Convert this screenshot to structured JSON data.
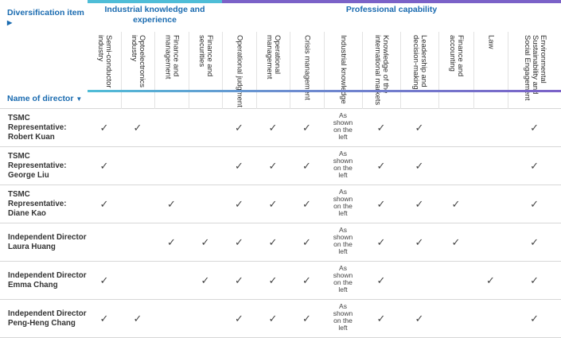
{
  "header": {
    "diversification_item": "Diversification item",
    "name_of_director": "Name of director",
    "group_industrial": "Industrial knowledge and experience",
    "group_professional": "Professional capability"
  },
  "columns": [
    "Semi-conductor industry",
    "Optoelectronics industry",
    "Finance and management",
    "Finance and securities",
    "Operational judgment",
    "Operational management",
    "Crisis management",
    "Industrial knowledge",
    "Knowledge of the international markets",
    "Leadership and decision-making",
    "Finance and accounting",
    "Law",
    "Environmental Sustainability and Social Engagement"
  ],
  "as_shown": "As shown on the left",
  "check_symbol": "✓",
  "directors": [
    {
      "name_lines": [
        "TSMC",
        "Representative:",
        "Robert Kuan"
      ],
      "cells": [
        "✓",
        "✓",
        "",
        "",
        "✓",
        "✓",
        "✓",
        "A",
        "✓",
        "✓",
        "",
        "",
        "✓"
      ]
    },
    {
      "name_lines": [
        "TSMC",
        "Representative:",
        "George Liu"
      ],
      "cells": [
        "✓",
        "",
        "",
        "",
        "✓",
        "✓",
        "✓",
        "A",
        "✓",
        "✓",
        "",
        "",
        "✓"
      ]
    },
    {
      "name_lines": [
        "TSMC",
        "Representative:",
        "Diane Kao"
      ],
      "cells": [
        "✓",
        "",
        "✓",
        "",
        "✓",
        "✓",
        "✓",
        "A",
        "✓",
        "✓",
        "✓",
        "",
        "✓"
      ]
    },
    {
      "name_lines": [
        "Independent Director",
        "Laura Huang"
      ],
      "cells": [
        "",
        "",
        "✓",
        "✓",
        "✓",
        "✓",
        "✓",
        "A",
        "✓",
        "✓",
        "✓",
        "",
        "✓"
      ]
    },
    {
      "name_lines": [
        "Independent Director",
        "Emma Chang"
      ],
      "cells": [
        "✓",
        "",
        "",
        "✓",
        "✓",
        "✓",
        "✓",
        "A",
        "✓",
        "",
        "",
        "✓",
        "✓"
      ]
    },
    {
      "name_lines": [
        "Independent Director",
        "Peng-Heng Chang"
      ],
      "cells": [
        "✓",
        "✓",
        "",
        "",
        "✓",
        "✓",
        "✓",
        "A",
        "✓",
        "✓",
        "",
        "",
        "✓"
      ]
    }
  ]
}
